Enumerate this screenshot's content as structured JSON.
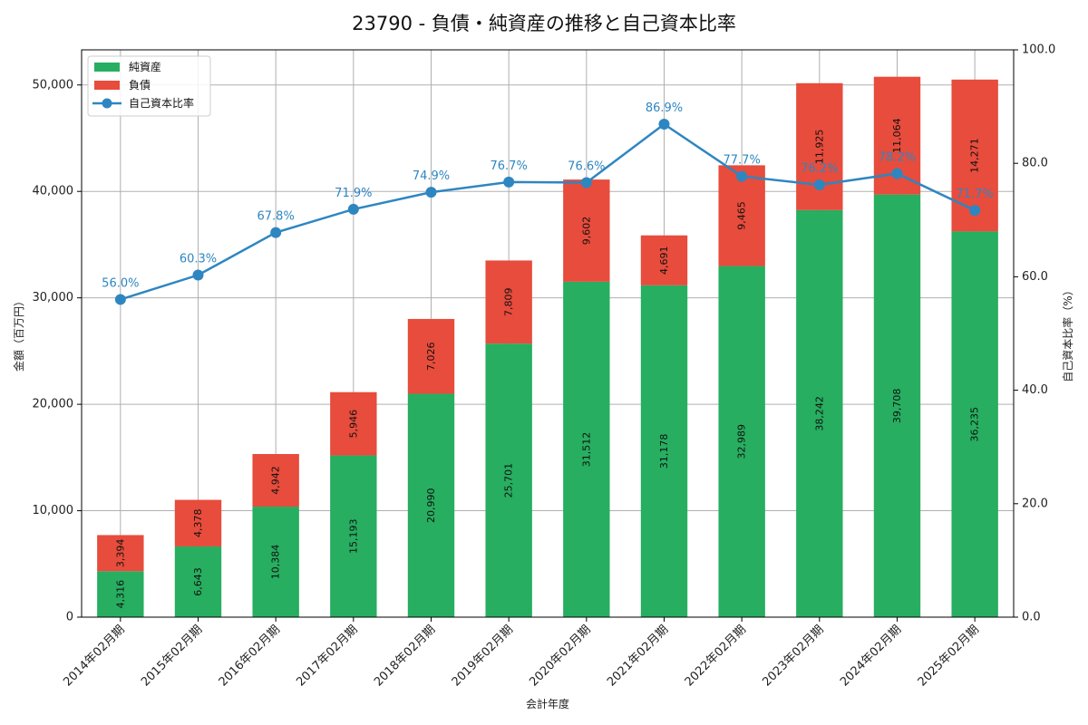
{
  "chart_data": {
    "type": "bar",
    "stacked": true,
    "title": "23790 - 負債・純資産の推移と自己資本比率",
    "xlabel": "会計年度",
    "ylabel": "金額（百万円）",
    "y2label": "自己資本比率（%）",
    "ylim": [
      0,
      53300
    ],
    "y2lim": [
      0,
      100
    ],
    "yticks": [
      0,
      10000,
      20000,
      30000,
      40000,
      50000
    ],
    "ytick_labels": [
      "0",
      "10,000",
      "20,000",
      "30,000",
      "40,000",
      "50,000"
    ],
    "y2ticks": [
      0,
      20,
      40,
      60,
      80,
      100
    ],
    "y2tick_labels": [
      "0.0",
      "20.0",
      "40.0",
      "60.0",
      "80.0",
      "100.0"
    ],
    "grid": true,
    "legend_position": "top-left",
    "categories": [
      "2014年02月期",
      "2015年02月期",
      "2016年02月期",
      "2017年02月期",
      "2018年02月期",
      "2019年02月期",
      "2020年02月期",
      "2021年02月期",
      "2022年02月期",
      "2023年02月期",
      "2024年02月期",
      "2025年02月期"
    ],
    "series": [
      {
        "name": "純資産",
        "kind": "bar",
        "color": "#27ae60",
        "values": [
          4316,
          6643,
          10384,
          15193,
          20990,
          25701,
          31512,
          31178,
          32989,
          38242,
          39708,
          36235
        ],
        "labels": [
          "4,316",
          "6,643",
          "10,384",
          "15,193",
          "20,990",
          "25,701",
          "31,512",
          "31,178",
          "32,989",
          "38,242",
          "39,708",
          "36,235"
        ]
      },
      {
        "name": "負債",
        "kind": "bar",
        "color": "#e74c3c",
        "values": [
          3394,
          4378,
          4942,
          5946,
          7026,
          7809,
          9602,
          4691,
          9465,
          11925,
          11064,
          14271
        ],
        "labels": [
          "3,394",
          "4,378",
          "4,942",
          "5,946",
          "7,026",
          "7,809",
          "9,602",
          "4,691",
          "9,465",
          "11,925",
          "11,064",
          "14,271"
        ]
      },
      {
        "name": "自己資本比率",
        "kind": "line",
        "axis": "right",
        "color": "#2e86c1",
        "values": [
          56.0,
          60.3,
          67.8,
          71.9,
          74.9,
          76.7,
          76.6,
          86.9,
          77.7,
          76.2,
          78.2,
          71.7
        ],
        "labels": [
          "56.0%",
          "60.3%",
          "67.8%",
          "71.9%",
          "74.9%",
          "76.7%",
          "76.6%",
          "86.9%",
          "77.7%",
          "76.2%",
          "78.2%",
          "71.7%"
        ]
      }
    ]
  }
}
